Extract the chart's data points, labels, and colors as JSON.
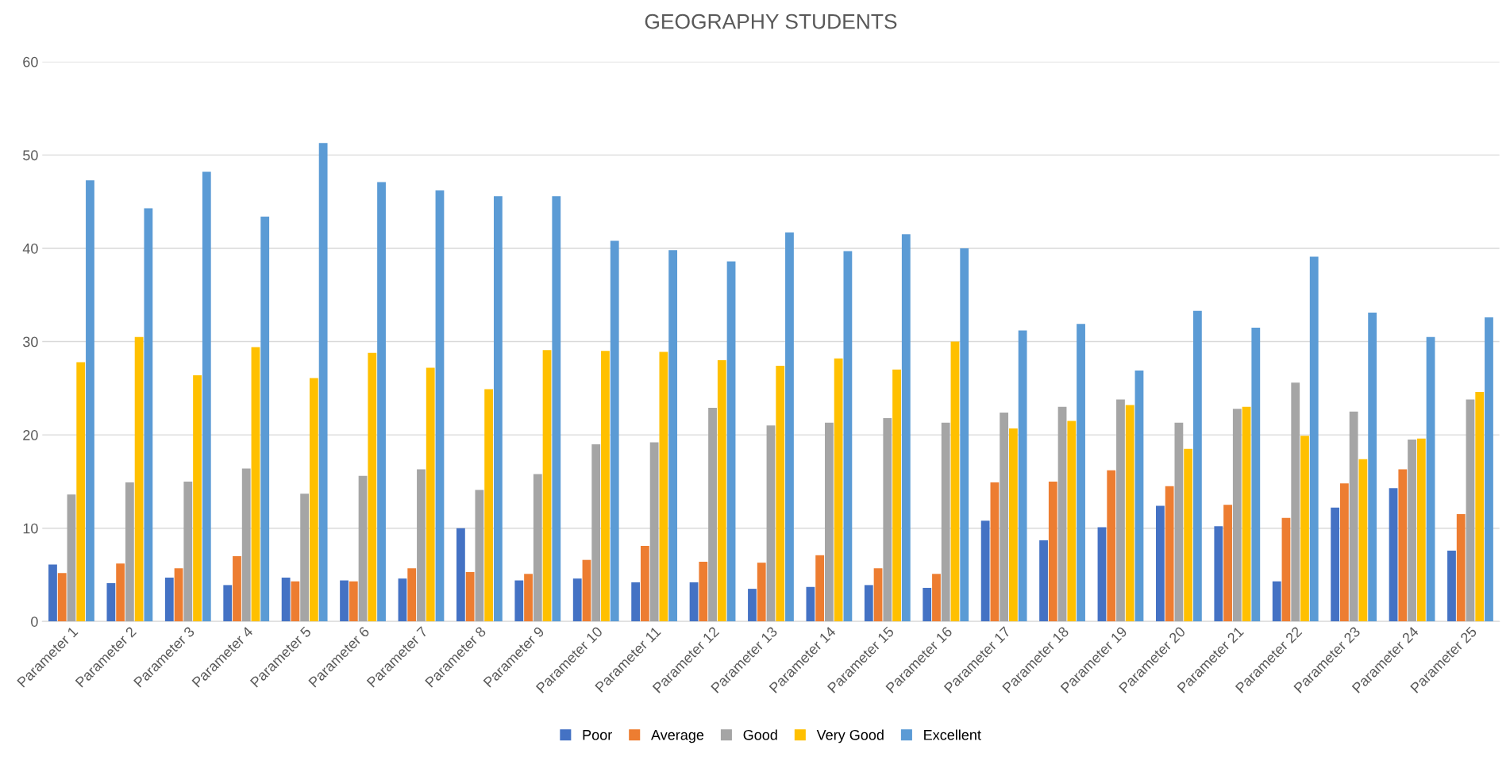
{
  "chart_data": {
    "type": "bar",
    "title": "GEOGRAPHY STUDENTS",
    "categories": [
      "Parameter 1",
      "Parameter 2",
      "Parameter 3",
      "Parameter 4",
      "Parameter 5",
      "Parameter 6",
      "Parameter 7",
      "Parameter 8",
      "Parameter 9",
      "Parameter 10",
      "Parameter 11",
      "Parameter 12",
      "Parameter 13",
      "Parameter 14",
      "Parameter 15",
      "Parameter 16",
      "Parameter 17",
      "Parameter 18",
      "Parameter 19",
      "Parameter 20",
      "Parameter 21",
      "Parameter 22",
      "Parameter 23",
      "Parameter 24",
      "Parameter 25"
    ],
    "series": [
      {
        "name": "Poor",
        "color": "#4472c4",
        "values": [
          6.1,
          4.1,
          4.7,
          3.9,
          4.7,
          4.4,
          4.6,
          10.0,
          4.4,
          4.6,
          4.2,
          4.2,
          3.5,
          3.7,
          3.9,
          3.6,
          10.8,
          8.7,
          10.1,
          12.4,
          10.2,
          4.3,
          12.2,
          14.3,
          7.6
        ]
      },
      {
        "name": "Average",
        "color": "#ed7d31",
        "values": [
          5.2,
          6.2,
          5.7,
          7.0,
          4.3,
          4.3,
          5.7,
          5.3,
          5.1,
          6.6,
          8.1,
          6.4,
          6.3,
          7.1,
          5.7,
          5.1,
          14.9,
          15.0,
          16.2,
          14.5,
          12.5,
          11.1,
          14.8,
          16.3,
          11.5
        ]
      },
      {
        "name": "Good",
        "color": "#a5a5a5",
        "values": [
          13.6,
          14.9,
          15.0,
          16.4,
          13.7,
          15.6,
          16.3,
          14.1,
          15.8,
          19.0,
          19.2,
          22.9,
          21.0,
          21.3,
          21.8,
          21.3,
          22.4,
          23.0,
          23.8,
          21.3,
          22.8,
          25.6,
          22.5,
          19.5,
          23.8
        ]
      },
      {
        "name": "Very Good",
        "color": "#ffc000",
        "values": [
          27.8,
          30.5,
          26.4,
          29.4,
          26.1,
          28.8,
          27.2,
          24.9,
          29.1,
          29.0,
          28.9,
          28.0,
          27.4,
          28.2,
          27.0,
          30.0,
          20.7,
          21.5,
          23.2,
          18.5,
          23.0,
          19.9,
          17.4,
          19.6,
          24.6
        ]
      },
      {
        "name": "Excellent",
        "color": "#5b9bd5",
        "values": [
          47.3,
          44.3,
          48.2,
          43.4,
          51.3,
          47.1,
          46.2,
          45.6,
          45.6,
          40.8,
          39.8,
          38.6,
          41.7,
          39.7,
          41.5,
          40.0,
          31.2,
          31.9,
          26.9,
          33.3,
          31.5,
          39.1,
          33.1,
          30.5,
          32.6
        ]
      }
    ],
    "ylim": [
      0,
      60
    ],
    "yticks": [
      0,
      10,
      20,
      30,
      40,
      50,
      60
    ],
    "grid": "y",
    "legend": "bottom"
  }
}
